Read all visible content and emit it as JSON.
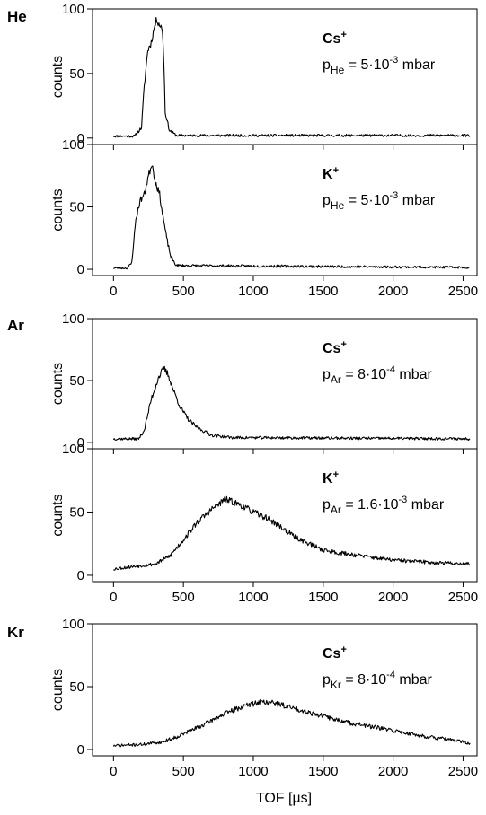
{
  "figure": {
    "groups": [
      {
        "label": "He",
        "panels": [
          0,
          1
        ]
      },
      {
        "label": "Ar",
        "panels": [
          2,
          3
        ]
      },
      {
        "label": "Kr",
        "panels": [
          4
        ]
      }
    ],
    "xlabel": "TOF [µs]",
    "ylabel": "counts"
  },
  "chart_data": [
    {
      "type": "line",
      "group": "He",
      "ion": "Cs",
      "ion_charge": "+",
      "pressure": {
        "prefix": "p",
        "subscript": "He",
        "mid": " = 5·10",
        "exp": "-3",
        "unit": " mbar"
      },
      "xlabel": "",
      "ylabel": "counts",
      "xlim": [
        -150,
        2600
      ],
      "ylim": [
        -5,
        100
      ],
      "yticks": [
        0,
        50,
        100
      ],
      "xticks": [
        0,
        500,
        1000,
        1500,
        2000,
        2500
      ],
      "show_xticklabels": false,
      "seed": 11,
      "keypoints": [
        [
          0,
          1.5
        ],
        [
          150,
          1.5
        ],
        [
          200,
          8
        ],
        [
          220,
          40
        ],
        [
          245,
          68
        ],
        [
          270,
          74
        ],
        [
          290,
          85
        ],
        [
          310,
          92
        ],
        [
          330,
          88
        ],
        [
          350,
          84
        ],
        [
          360,
          60
        ],
        [
          370,
          20
        ],
        [
          400,
          6
        ],
        [
          450,
          2
        ],
        [
          2550,
          2
        ]
      ]
    },
    {
      "type": "line",
      "group": "He",
      "ion": "K",
      "ion_charge": "+",
      "pressure": {
        "prefix": "p",
        "subscript": "He",
        "mid": " = 5·10",
        "exp": "-3",
        "unit": " mbar"
      },
      "xlabel": "",
      "ylabel": "counts",
      "xlim": [
        -150,
        2600
      ],
      "ylim": [
        -5,
        100
      ],
      "yticks": [
        0,
        50,
        100
      ],
      "xticks": [
        0,
        500,
        1000,
        1500,
        2000,
        2500
      ],
      "show_xticklabels": true,
      "seed": 23,
      "keypoints": [
        [
          0,
          1
        ],
        [
          100,
          1
        ],
        [
          130,
          5
        ],
        [
          160,
          40
        ],
        [
          190,
          55
        ],
        [
          220,
          60
        ],
        [
          250,
          75
        ],
        [
          275,
          85
        ],
        [
          300,
          70
        ],
        [
          330,
          60
        ],
        [
          350,
          45
        ],
        [
          380,
          25
        ],
        [
          410,
          10
        ],
        [
          450,
          3
        ],
        [
          2550,
          1.5
        ]
      ]
    },
    {
      "type": "line",
      "group": "Ar",
      "ion": "Cs",
      "ion_charge": "+",
      "pressure": {
        "prefix": "p",
        "subscript": "Ar",
        "mid": " = 8·10",
        "exp": "-4",
        "unit": " mbar"
      },
      "xlabel": "",
      "ylabel": "counts",
      "xlim": [
        -150,
        2600
      ],
      "ylim": [
        -5,
        100
      ],
      "yticks": [
        0,
        50,
        100
      ],
      "xticks": [
        0,
        500,
        1000,
        1500,
        2000,
        2500
      ],
      "show_xticklabels": false,
      "seed": 37,
      "keypoints": [
        [
          0,
          3
        ],
        [
          180,
          3
        ],
        [
          220,
          10
        ],
        [
          270,
          35
        ],
        [
          320,
          52
        ],
        [
          360,
          60
        ],
        [
          390,
          55
        ],
        [
          430,
          42
        ],
        [
          480,
          28
        ],
        [
          540,
          18
        ],
        [
          600,
          12
        ],
        [
          700,
          6
        ],
        [
          850,
          4
        ],
        [
          2550,
          3
        ]
      ]
    },
    {
      "type": "line",
      "group": "Ar",
      "ion": "K",
      "ion_charge": "+",
      "pressure": {
        "prefix": "p",
        "subscript": "Ar",
        "mid": " = 1.6·10",
        "exp": "-3",
        "unit": " mbar"
      },
      "xlabel": "",
      "ylabel": "counts",
      "xlim": [
        -150,
        2600
      ],
      "ylim": [
        -5,
        100
      ],
      "yticks": [
        0,
        50,
        100
      ],
      "xticks": [
        0,
        500,
        1000,
        1500,
        2000,
        2500
      ],
      "show_xticklabels": true,
      "seed": 53,
      "keypoints": [
        [
          0,
          5
        ],
        [
          150,
          7
        ],
        [
          300,
          9
        ],
        [
          400,
          15
        ],
        [
          500,
          28
        ],
        [
          600,
          42
        ],
        [
          700,
          52
        ],
        [
          800,
          60
        ],
        [
          900,
          56
        ],
        [
          1000,
          50
        ],
        [
          1100,
          45
        ],
        [
          1200,
          38
        ],
        [
          1300,
          30
        ],
        [
          1400,
          25
        ],
        [
          1500,
          20
        ],
        [
          1600,
          18
        ],
        [
          1800,
          15
        ],
        [
          2000,
          12
        ],
        [
          2300,
          10
        ],
        [
          2550,
          9
        ]
      ]
    },
    {
      "type": "line",
      "group": "Kr",
      "ion": "Cs",
      "ion_charge": "+",
      "pressure": {
        "prefix": "p",
        "subscript": "Kr",
        "mid": " = 8·10",
        "exp": "-4",
        "unit": " mbar"
      },
      "xlabel": "TOF [µs]",
      "ylabel": "counts",
      "xlim": [
        -150,
        2600
      ],
      "ylim": [
        -5,
        100
      ],
      "yticks": [
        0,
        50,
        100
      ],
      "xticks": [
        0,
        500,
        1000,
        1500,
        2000,
        2500
      ],
      "show_xticklabels": true,
      "seed": 71,
      "keypoints": [
        [
          0,
          3
        ],
        [
          200,
          4
        ],
        [
          350,
          6
        ],
        [
          450,
          10
        ],
        [
          550,
          15
        ],
        [
          650,
          20
        ],
        [
          750,
          26
        ],
        [
          850,
          31
        ],
        [
          950,
          35
        ],
        [
          1050,
          38
        ],
        [
          1150,
          37
        ],
        [
          1250,
          34
        ],
        [
          1350,
          31
        ],
        [
          1450,
          28
        ],
        [
          1550,
          25
        ],
        [
          1650,
          22
        ],
        [
          1750,
          20
        ],
        [
          1850,
          18
        ],
        [
          1950,
          16
        ],
        [
          2100,
          13
        ],
        [
          2250,
          10
        ],
        [
          2400,
          8
        ],
        [
          2550,
          5
        ]
      ]
    }
  ]
}
